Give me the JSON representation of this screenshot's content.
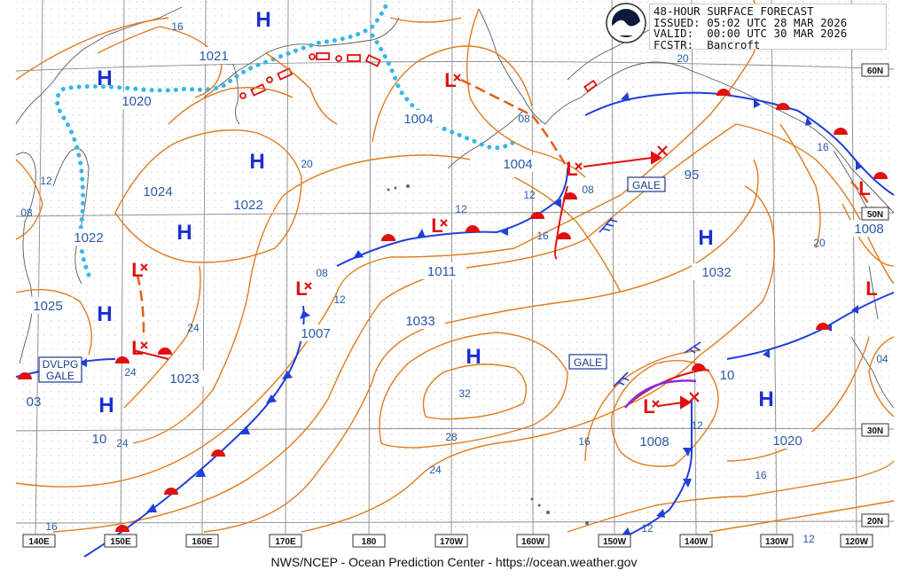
{
  "header": {
    "title": "48-HOUR SURFACE FORECAST",
    "issued": "ISSUED: 05:02 UTC 28 MAR 2026",
    "valid": "VALID:  00:00 UTC 30 MAR 2026",
    "forecaster": "FCSTR:  Bancroft"
  },
  "credit": "NWS/NCEP - Ocean Prediction Center - https://ocean.weather.gov",
  "logo": "noaa-logo-icon",
  "colors": {
    "isobar": "#e07b1f",
    "high": "#1a2fd0",
    "low": "#e01010",
    "cold_front": "#1f3fd8",
    "warm_front": "#e01010",
    "ice": "#38b6e8",
    "grid": "#8a8a8a",
    "coast": "#555555",
    "label": "#2a5aa8"
  },
  "lat_labels": [
    "60N",
    "50N",
    "30N",
    "20N"
  ],
  "lon_labels": [
    "140E",
    "150E",
    "160E",
    "170E",
    "180",
    "170W",
    "160W",
    "150W",
    "140W",
    "130W",
    "120W"
  ],
  "highs": [
    {
      "symbol": "H",
      "pressure": "1021"
    },
    {
      "symbol": "H",
      "pressure": "1020"
    },
    {
      "symbol": "H",
      "pressure": "1024"
    },
    {
      "symbol": "H",
      "pressure": "1022"
    },
    {
      "symbol": "H",
      "pressure": "1022"
    },
    {
      "symbol": "H",
      "pressure": "1025"
    },
    {
      "symbol": "H",
      "pressure": "1023"
    },
    {
      "symbol": "H",
      "pressure": "1033"
    },
    {
      "symbol": "H",
      "pressure": "1032"
    },
    {
      "symbol": "H",
      "pressure": "1020"
    }
  ],
  "lows": [
    {
      "symbol": "L",
      "pressure": "1004"
    },
    {
      "symbol": "L",
      "pressure": "1004"
    },
    {
      "symbol": "L",
      "pressure": "1011"
    },
    {
      "symbol": "L",
      "pressure": "1007"
    },
    {
      "symbol": "L",
      "pressure": "1008"
    },
    {
      "symbol": "L",
      "pressure": "1008"
    },
    {
      "symbol": "L",
      "pressure": "1023"
    }
  ],
  "warnings": [
    "GALE",
    "GALE",
    "DVLPG",
    "GALE"
  ],
  "isobar_labels": [
    "16",
    "20",
    "08",
    "12",
    "16",
    "12",
    "08",
    "95",
    "16",
    "20",
    "12",
    "08",
    "24",
    "24",
    "28",
    "32",
    "24",
    "16",
    "12",
    "12",
    "10",
    "16",
    "12",
    "04",
    "03",
    "10",
    "24",
    "16",
    "08"
  ]
}
